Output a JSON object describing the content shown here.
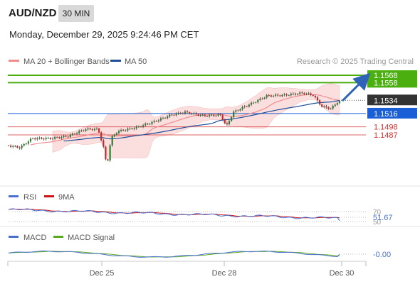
{
  "header": {
    "symbol": "AUD/NZD",
    "timeframe": "30 MIN",
    "timestamp": "Monday, December 29, 2025 9:24:46 PM CET"
  },
  "legend": {
    "ma20_label": "MA 20 + Bollinger Bands",
    "ma50_label": "MA 50",
    "credit": "Research © 2025 Trading Central",
    "ma20_color": "#f08c8c",
    "ma50_color": "#1f4e99"
  },
  "chart_data": [
    {
      "type": "candlestick",
      "panel": "price",
      "price_range": [
        1.1425,
        1.1585
      ],
      "bollinger_band_color": "#fbdada",
      "candle_up_color": "#2e7d32",
      "candle_down_color": "#c62828",
      "levels": [
        {
          "value": 1.1568,
          "label": "1.1568",
          "kind": "target",
          "color": "#4caf10"
        },
        {
          "value": 1.1558,
          "label": "1.1558",
          "kind": "target",
          "color": "#4caf10"
        },
        {
          "value": 1.1534,
          "label": "1.1534",
          "kind": "last-price",
          "color": "#333333"
        },
        {
          "value": 1.1516,
          "label": "1.1516",
          "kind": "pivot",
          "color": "#1a5fd6"
        },
        {
          "value": 1.1498,
          "label": "1.1498",
          "kind": "support",
          "color": "#d32f2f"
        },
        {
          "value": 1.1487,
          "label": "1.1487",
          "kind": "support",
          "color": "#d32f2f"
        }
      ],
      "projection": {
        "from": 1.1534,
        "to": 1.1568,
        "direction": "up",
        "color": "#2e63b8"
      }
    },
    {
      "type": "line",
      "panel": "rsi",
      "series": [
        {
          "name": "RSI",
          "color": "#4a6fd1"
        },
        {
          "name": "9MA",
          "color": "#cc1111"
        }
      ],
      "y_ticks": [
        "70",
        "50"
      ],
      "last_value_label": "51.67",
      "last_value": 51.67
    },
    {
      "type": "line",
      "panel": "macd",
      "series": [
        {
          "name": "MACD",
          "color": "#4a6fd1"
        },
        {
          "name": "MACD Signal",
          "color": "#5aaa1e"
        }
      ],
      "last_value_label": "-0.00",
      "last_value": -0.0
    }
  ],
  "x_axis": {
    "tick_labels": [
      "Dec 25",
      "Dec 28",
      "Dec 30"
    ]
  }
}
